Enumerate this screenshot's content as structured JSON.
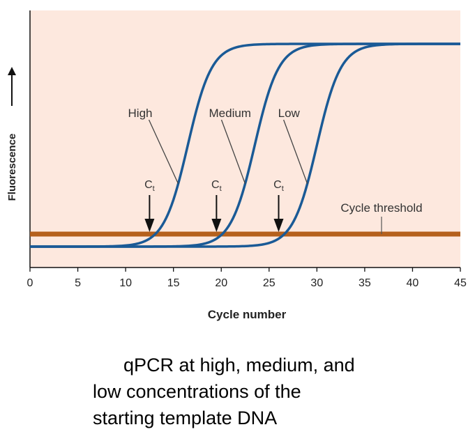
{
  "chart_data": {
    "type": "line",
    "xlabel": "Cycle number",
    "ylabel": "Fluorescence",
    "xlim": [
      0,
      45
    ],
    "xticks": [
      0,
      5,
      10,
      15,
      20,
      25,
      30,
      35,
      40,
      45
    ],
    "grid": false,
    "background_color": "#fde8de",
    "series": [
      {
        "name": "High",
        "color": "#1a5a96",
        "ct": 12.5,
        "midpoint": 16.5
      },
      {
        "name": "Medium",
        "color": "#1a5a96",
        "ct": 19.5,
        "midpoint": 23.5
      },
      {
        "name": "Low",
        "color": "#1a5a96",
        "ct": 26,
        "midpoint": 30
      }
    ],
    "ct_label": "Ct",
    "threshold": {
      "label": "Cycle threshold",
      "color": "#b5601c"
    }
  },
  "caption": {
    "line1": "qPCR at high, medium, and",
    "line2": "low concentrations of the",
    "line3": "starting template DNA"
  }
}
